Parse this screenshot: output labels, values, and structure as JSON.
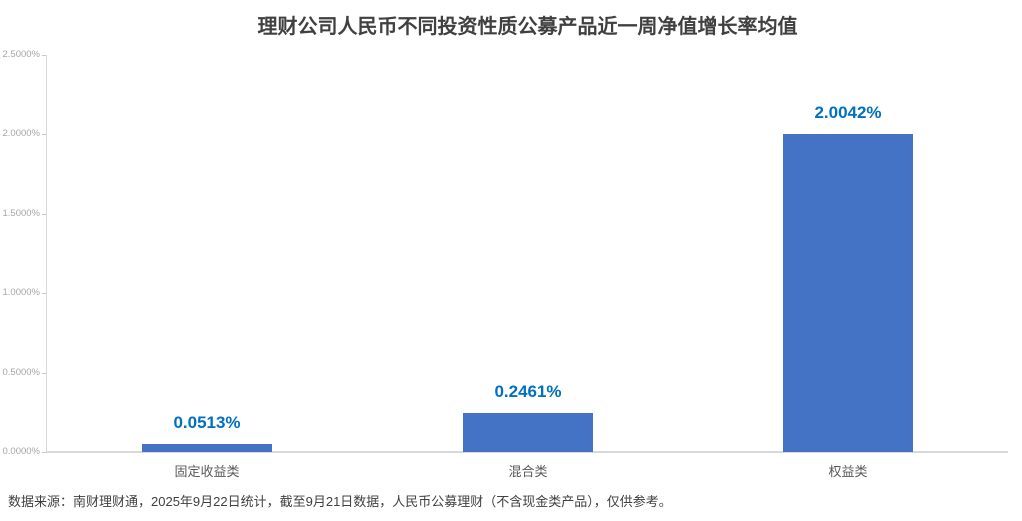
{
  "title": "理财公司人民币不同投资性质公募产品近一周净值增长率均值",
  "source_note": "数据来源：南财理财通，2025年9月22日统计，截至9月21日数据，人民币公募理财（不含现金类产品），仅供参考。",
  "colors": {
    "bar": "#4472C4",
    "value_label": "#0070C0",
    "axis_line": "#d9d9d9",
    "tick_mark": "#c9c9c9",
    "y_tick_label": "#a6a6a6",
    "x_tick_label": "#595959",
    "title_text": "#404040",
    "source_text": "#404040",
    "background": "#ffffff"
  },
  "chart_data": {
    "type": "bar",
    "title": "理财公司人民币不同投资性质公募产品近一周净值增长率均值",
    "categories": [
      "固定收益类",
      "混合类",
      "权益类"
    ],
    "values": [
      0.0513,
      0.2461,
      2.0042
    ],
    "value_labels": [
      "0.0513%",
      "0.2461%",
      "2.0042%"
    ],
    "xlabel": "",
    "ylabel": "",
    "ylim": [
      0,
      2.5
    ],
    "yticks": [
      0,
      0.5,
      1.0,
      1.5,
      2.0,
      2.5
    ],
    "ytick_labels": [
      "0.0000%",
      "0.5000%",
      "1.0000%",
      "1.5000%",
      "2.0000%",
      "2.5000%"
    ],
    "grid": false,
    "legend": false
  }
}
